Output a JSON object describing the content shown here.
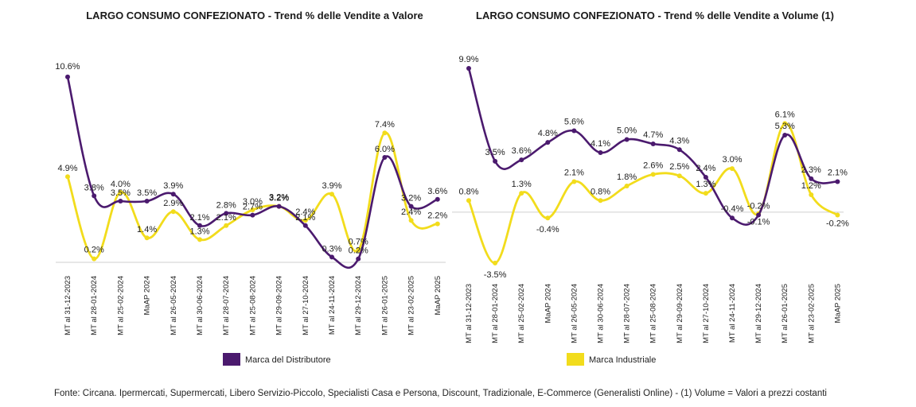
{
  "colors": {
    "distributore": "#4b1a6e",
    "industriale": "#f2dc1c",
    "axis": "#cfcfcf"
  },
  "source_note": "Fonte: Circana. Ipermercati, Supermercati, Libero Servizio-Piccolo, Specialisti Casa e Persona, Discount, Tradizionale, E-Commerce (Generalisti Online) - (1) Volume = Valori a prezzi costanti",
  "chart_data": [
    {
      "type": "line",
      "title": "LARGO CONSUMO CONFEZIONATO - Trend % delle Vendite a Valore",
      "categories": [
        "MT al 31-12-2023",
        "MT al 28-01-2024",
        "MT al 25-02-2024",
        "MaAP 2024",
        "MT al 26-05-2024",
        "MT al 30-06-2024",
        "MT al 28-07-2024",
        "MT al 25-08-2024",
        "MT al 29-09-2024",
        "MT al 27-10-2024",
        "MT al 24-11-2024",
        "MT al 29-12-2024",
        "MT al 26-01-2025",
        "MT al 23-02-2025",
        "MaAP 2025"
      ],
      "series": [
        {
          "name": "Marca del Distributore",
          "color": "#4b1a6e",
          "values": [
            10.6,
            3.8,
            3.5,
            3.5,
            3.9,
            2.1,
            2.8,
            2.7,
            3.2,
            2.1,
            0.3,
            0.2,
            6.0,
            3.2,
            3.6
          ],
          "labels": [
            "10.6%",
            "3.8%",
            "3.5%",
            "3.5%",
            "3.9%",
            "2.1%",
            "2.8%",
            "2.7%",
            "3.2%",
            "2.1%",
            "0.3%",
            "0.2%",
            "6.0%",
            "3.2%",
            "3.6%"
          ]
        },
        {
          "name": "Marca Industriale",
          "color": "#f2dc1c",
          "values": [
            4.9,
            0.2,
            4.0,
            1.4,
            2.9,
            1.3,
            2.1,
            3.0,
            3.2,
            2.4,
            3.9,
            0.7,
            7.4,
            2.4,
            2.2
          ],
          "labels": [
            "4.9%",
            "0.2%",
            "4.0%",
            "1.4%",
            "2.9%",
            "1.3%",
            "2.1%",
            "3.0%",
            "3.2%",
            "2.4%",
            "3.9%",
            "0.7%",
            "7.4%",
            "2.4%",
            "2.2%"
          ]
        }
      ],
      "ylim": [
        0,
        11
      ],
      "legend": "bottom"
    },
    {
      "type": "line",
      "title": "LARGO CONSUMO CONFEZIONATO - Trend % delle Vendite a Volume (1)",
      "categories": [
        "MT al 31-12-2023",
        "MT al 28-01-2024",
        "MT al 25-02-2024",
        "MaAP 2024",
        "MT al 26-05-2024",
        "MT al 30-06-2024",
        "MT al 28-07-2024",
        "MT al 25-08-2024",
        "MT al 29-09-2024",
        "MT al 27-10-2024",
        "MT al 24-11-2024",
        "MT al 29-12-2024",
        "MT al 26-01-2025",
        "MT al 23-02-2025",
        "MaAP 2025"
      ],
      "series": [
        {
          "name": "Marca del Distributore",
          "color": "#4b1a6e",
          "values": [
            9.9,
            3.5,
            3.6,
            4.8,
            5.6,
            4.1,
            5.0,
            4.7,
            4.3,
            2.4,
            -0.4,
            -0.2,
            5.3,
            2.3,
            2.1
          ],
          "labels": [
            "9.9%",
            "3.5%",
            "3.6%",
            "4.8%",
            "5.6%",
            "4.1%",
            "5.0%",
            "4.7%",
            "4.3%",
            "2.4%",
            "-0.4%",
            "-0.2%",
            "5.3%",
            "2.3%",
            "2.1%"
          ]
        },
        {
          "name": "Marca Industriale",
          "color": "#f2dc1c",
          "values": [
            0.8,
            -3.5,
            1.3,
            -0.4,
            2.1,
            0.8,
            1.8,
            2.6,
            2.5,
            1.3,
            3.0,
            -0.1,
            6.1,
            1.2,
            -0.2
          ],
          "labels": [
            "0.8%",
            "-3.5%",
            "1.3%",
            "-0.4%",
            "2.1%",
            "0.8%",
            "1.8%",
            "2.6%",
            "2.5%",
            "1.3%",
            "3.0%",
            "-0.1%",
            "6.1%",
            "1.2%",
            "-0.2%"
          ]
        }
      ],
      "ylim": [
        -4,
        10.5
      ],
      "legend": "bottom"
    }
  ]
}
